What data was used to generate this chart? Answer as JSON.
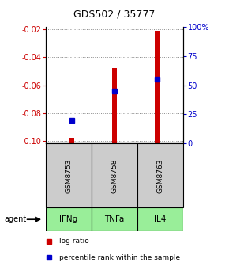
{
  "title": "GDS502 / 35777",
  "samples": [
    "GSM8753",
    "GSM8758",
    "GSM8763"
  ],
  "agents": [
    "IFNg",
    "TNFa",
    "IL4"
  ],
  "log_ratios": [
    -0.098,
    -0.048,
    -0.021
  ],
  "percentile_ranks": [
    20,
    45,
    55
  ],
  "ylim_left": [
    -0.102,
    -0.018
  ],
  "yticks_left": [
    -0.1,
    -0.08,
    -0.06,
    -0.04,
    -0.02
  ],
  "ylim_right": [
    0,
    100
  ],
  "yticks_right": [
    0,
    25,
    50,
    75,
    100
  ],
  "bar_color": "#cc0000",
  "pct_color": "#0000cc",
  "bar_width": 0.12,
  "pct_marker_size": 5,
  "grid_color": "#888888",
  "sample_box_color": "#cccccc",
  "agent_box_color": "#99ee99",
  "title_fontsize": 9,
  "tick_fontsize": 7,
  "sample_fontsize": 6.5,
  "legend_fontsize": 6.5,
  "agent_label_fontsize": 7.5
}
